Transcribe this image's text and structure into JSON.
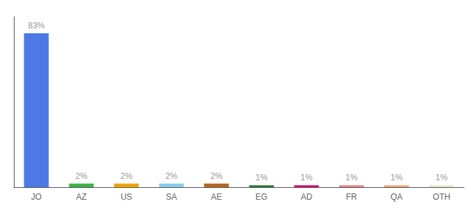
{
  "chart_data": {
    "type": "bar",
    "categories": [
      "JO",
      "AZ",
      "US",
      "SA",
      "AE",
      "EG",
      "AD",
      "FR",
      "QA",
      "OTH"
    ],
    "values": [
      83,
      2,
      2,
      2,
      2,
      1,
      1,
      1,
      1,
      1
    ],
    "value_labels": [
      "83%",
      "2%",
      "2%",
      "2%",
      "2%",
      "1%",
      "1%",
      "1%",
      "1%",
      "1%"
    ],
    "colors": [
      "#4d79e6",
      "#3db34a",
      "#f0a500",
      "#87ceeb",
      "#b5651d",
      "#2d7a2d",
      "#e0006e",
      "#f08080",
      "#f4a57a",
      "#e8e8c8"
    ],
    "ylim": [
      0,
      92
    ],
    "grid": false,
    "data_labels": true,
    "tick_labels": "x"
  }
}
